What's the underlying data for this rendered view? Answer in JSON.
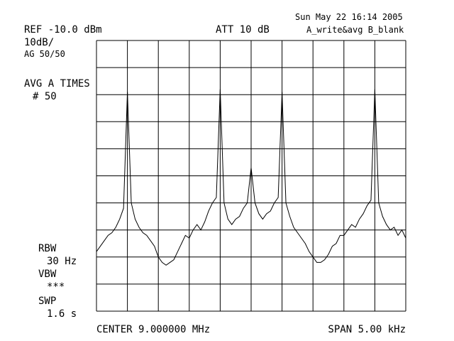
{
  "chart_data": {
    "type": "line",
    "timestamp": "Sun May 22 16:14 2005",
    "reference": "REF -10.0 dBm",
    "attenuation": "ATT 10 dB",
    "trace_mode": "A_write&avg B_blank",
    "scale": "10dB/",
    "averaging": "AG 50/50",
    "avg_label": "AVG A TIMES",
    "avg_count": "# 50",
    "rbw_label": "RBW",
    "rbw_value": "30 Hz",
    "vbw_label": "VBW",
    "vbw_value": "***",
    "swp_label": "SWP",
    "swp_value": "1.6 s",
    "center": "CENTER 9.000000 MHz",
    "span": "SPAN 5.00 kHz",
    "xlim": [
      8.9975,
      9.0025
    ],
    "ylim": [
      -110,
      -10
    ],
    "grid": true,
    "series": [
      {
        "name": "A",
        "color": "#000000",
        "x": [
          8.9975,
          8.9975625,
          8.997625,
          8.9976875,
          8.99775,
          8.9978125,
          8.997875,
          8.9979375,
          8.998,
          8.9980625,
          8.998125,
          8.9981875,
          8.99825,
          8.9983125,
          8.998375,
          8.9984375,
          8.9985,
          8.9985625,
          8.998625,
          8.9986875,
          8.99875,
          8.9988125,
          8.998875,
          8.9989375,
          8.999,
          8.9990625,
          8.999125,
          8.9991875,
          8.99925,
          8.9993125,
          8.999375,
          8.9994375,
          8.9995,
          8.9995625,
          8.999625,
          8.9996875,
          8.99975,
          8.9998125,
          8.999875,
          8.9999375,
          9,
          9.0000625,
          9.000125,
          9.0001875,
          9.00025,
          9.0003125,
          9.000375,
          9.0004375,
          9.0005,
          9.0005625,
          9.000625,
          9.0006875,
          9.00075,
          9.0008125,
          9.000875,
          9.0009375,
          9.001,
          9.0010625,
          9.001125,
          9.0011875,
          9.00125,
          9.0013125,
          9.001375,
          9.0014375,
          9.0015,
          9.0015625,
          9.001625,
          9.0016875,
          9.00175,
          9.0018125,
          9.001875,
          9.0019375,
          9.002,
          9.0020625,
          9.002125,
          9.0021875,
          9.00225,
          9.0023125,
          9.002375,
          9.0024375,
          9.0025
        ],
        "values": [
          -88,
          -86,
          -84,
          -82,
          -81,
          -79,
          -76,
          -72,
          -29,
          -70,
          -76,
          -79,
          -81,
          -82,
          -84,
          -86,
          -90,
          -92,
          -93,
          -92,
          -91,
          -88,
          -85,
          -82,
          -83,
          -80,
          -78,
          -80,
          -77,
          -73,
          -70,
          -68,
          -28,
          -70,
          -76,
          -78,
          -76,
          -75,
          -72,
          -70,
          -57,
          -70,
          -74,
          -76,
          -74,
          -73,
          -70,
          -68,
          -29,
          -70,
          -75,
          -79,
          -81,
          -83,
          -85,
          -88,
          -90,
          -92,
          -92,
          -91,
          -89,
          -86,
          -85,
          -82,
          -82,
          -80,
          -78,
          -79,
          -76,
          -74,
          -71,
          -69,
          -28,
          -70,
          -75,
          -78,
          -80,
          -79,
          -82,
          -80,
          -83
        ]
      }
    ]
  }
}
